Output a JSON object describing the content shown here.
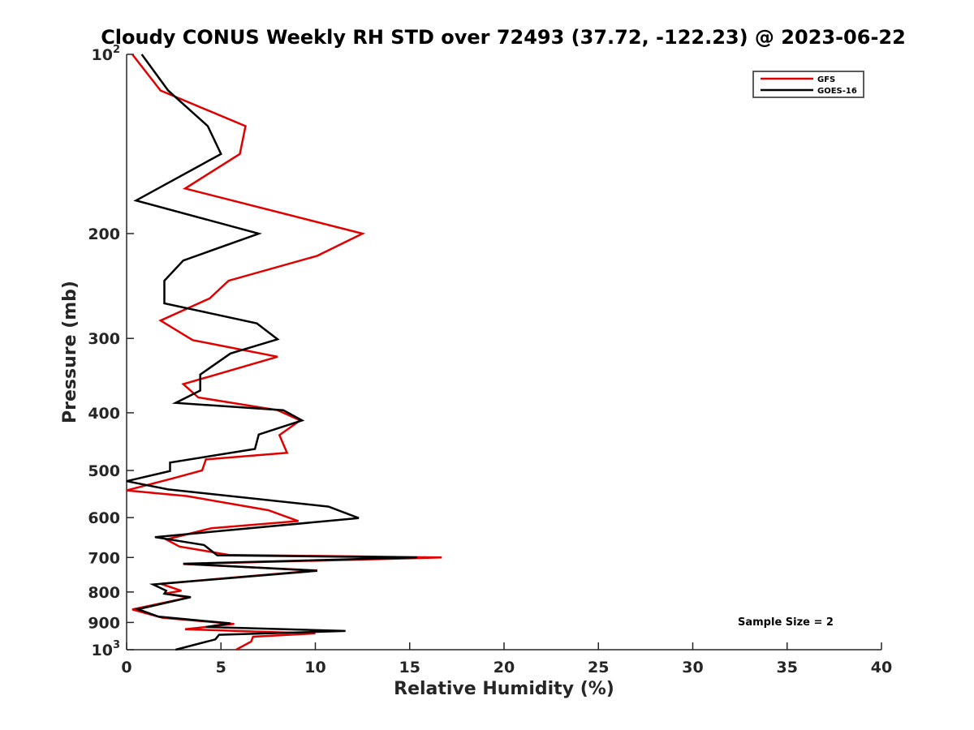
{
  "chart_data": {
    "type": "line",
    "title": "Cloudy CONUS Weekly RH STD over 72493 (37.72, -122.23) @ 2023-06-22",
    "xlabel": "Relative Humidity (%)",
    "ylabel": "Pressure (mb)",
    "xlim": [
      0,
      40
    ],
    "ylim": [
      100,
      1000
    ],
    "y_scale": "log",
    "y_inverted": true,
    "x_ticks": [
      0,
      5,
      10,
      15,
      20,
      25,
      30,
      35,
      40
    ],
    "x_tick_labels": [
      "0",
      "5",
      "10",
      "15",
      "20",
      "25",
      "30",
      "35",
      "40"
    ],
    "y_ticks": [
      100,
      200,
      300,
      400,
      500,
      600,
      700,
      800,
      900,
      1000
    ],
    "y_tick_labels": [
      {
        "base": "10",
        "sup": "2"
      },
      {
        "base": "200",
        "sup": ""
      },
      {
        "base": "300",
        "sup": ""
      },
      {
        "base": "400",
        "sup": ""
      },
      {
        "base": "500",
        "sup": ""
      },
      {
        "base": "600",
        "sup": ""
      },
      {
        "base": "700",
        "sup": ""
      },
      {
        "base": "800",
        "sup": ""
      },
      {
        "base": "900",
        "sup": ""
      },
      {
        "base": "10",
        "sup": "3"
      }
    ],
    "grid": false,
    "legend_position": "top-right",
    "annotation": "Sample Size = 2",
    "series": [
      {
        "name": "GFS",
        "color": "#e00000",
        "points": [
          [
            0.3,
            100
          ],
          [
            1.8,
            115
          ],
          [
            6.3,
            132
          ],
          [
            6.0,
            147
          ],
          [
            3.1,
            168
          ],
          [
            12.5,
            200
          ],
          [
            10.1,
            218
          ],
          [
            5.4,
            240
          ],
          [
            4.4,
            257
          ],
          [
            1.8,
            280
          ],
          [
            3.5,
            302
          ],
          [
            8.0,
            322
          ],
          [
            3.0,
            358
          ],
          [
            3.8,
            377
          ],
          [
            8.0,
            396
          ],
          [
            9.2,
            412
          ],
          [
            8.1,
            436
          ],
          [
            8.5,
            467
          ],
          [
            4.2,
            479
          ],
          [
            4.0,
            500
          ],
          [
            2.4,
            516
          ],
          [
            0.0,
            540
          ],
          [
            3.2,
            552
          ],
          [
            7.5,
            583
          ],
          [
            9.1,
            608
          ],
          [
            4.5,
            625
          ],
          [
            2.1,
            653
          ],
          [
            2.8,
            671
          ],
          [
            5.4,
            693
          ],
          [
            16.7,
            700
          ],
          [
            3.0,
            718
          ],
          [
            10.1,
            736
          ],
          [
            1.8,
            775
          ],
          [
            2.9,
            796
          ],
          [
            2.0,
            805
          ],
          [
            3.3,
            817
          ],
          [
            0.3,
            856
          ],
          [
            1.9,
            884
          ],
          [
            5.7,
            905
          ],
          [
            3.1,
            924
          ],
          [
            10.0,
            939
          ],
          [
            6.7,
            951
          ],
          [
            6.6,
            969
          ],
          [
            5.8,
            1000
          ]
        ]
      },
      {
        "name": "GOES-16",
        "color": "#000000",
        "points": [
          [
            0.8,
            100
          ],
          [
            2.2,
            115
          ],
          [
            4.3,
            132
          ],
          [
            5.0,
            147
          ],
          [
            0.5,
            176
          ],
          [
            7.0,
            200
          ],
          [
            3.0,
            222
          ],
          [
            2.0,
            240
          ],
          [
            2.0,
            262
          ],
          [
            6.9,
            283
          ],
          [
            8.0,
            301
          ],
          [
            5.5,
            318
          ],
          [
            3.9,
            345
          ],
          [
            3.9,
            367
          ],
          [
            2.6,
            385
          ],
          [
            8.3,
            396
          ],
          [
            9.3,
            412
          ],
          [
            7.0,
            435
          ],
          [
            6.8,
            460
          ],
          [
            2.3,
            485
          ],
          [
            2.3,
            501
          ],
          [
            0.0,
            521
          ],
          [
            2.2,
            538
          ],
          [
            10.7,
            575
          ],
          [
            12.3,
            601
          ],
          [
            1.5,
            647
          ],
          [
            4.1,
            667
          ],
          [
            4.8,
            694
          ],
          [
            15.4,
            700
          ],
          [
            3.0,
            717
          ],
          [
            10.1,
            737
          ],
          [
            1.4,
            777
          ],
          [
            2.1,
            796
          ],
          [
            2.0,
            805
          ],
          [
            3.4,
            816
          ],
          [
            0.6,
            855
          ],
          [
            1.7,
            880
          ],
          [
            5.5,
            903
          ],
          [
            4.2,
            916
          ],
          [
            11.6,
            930
          ],
          [
            4.9,
            944
          ],
          [
            4.7,
            961
          ],
          [
            2.6,
            1000
          ]
        ]
      }
    ]
  }
}
